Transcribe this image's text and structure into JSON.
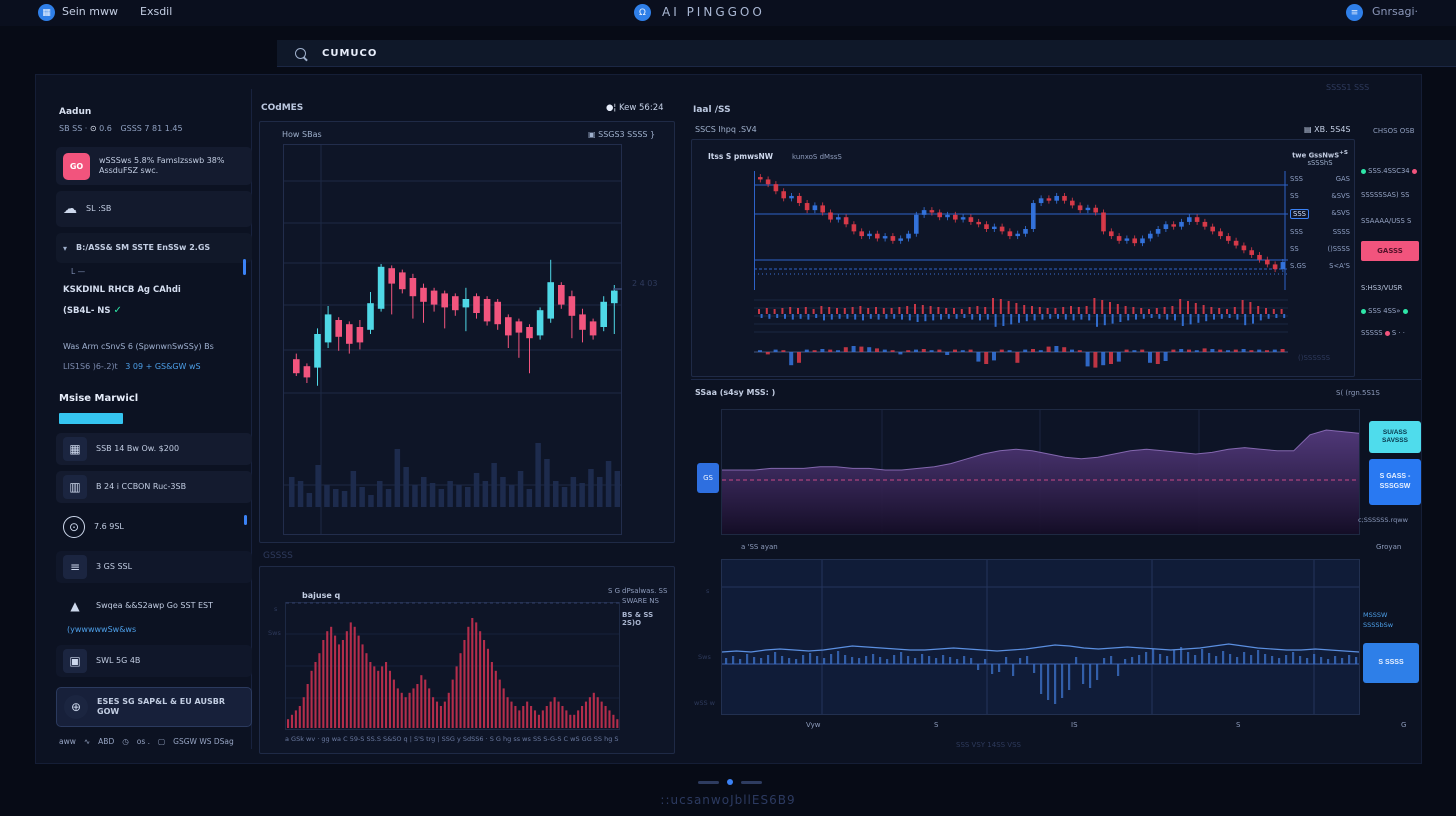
{
  "topbar": {
    "brand_a": "Sein mww",
    "brand_b": "Exsdil",
    "title": "AI PINGGOO",
    "user": "Gnrsagi·"
  },
  "search": {
    "query": "CUMUCO"
  },
  "panel": {
    "faint_right": "SSSS1 SSS"
  },
  "sidebar": {
    "section_label": "Aadun",
    "stats_p1": "SB SS ·",
    "stats_p2": "0.6",
    "stats_p3": "GSSS 7 81 1.45",
    "go_icon": "GO",
    "go_text": "wSSSws 5.8% FamsIzsswb 38% AssduFSZ swc.",
    "cloud_text": "SL :SB",
    "caret_text": "B:/ASS& SM SSTE EnSSw 2.GS",
    "caret_sub": "L —",
    "para1": "KSKDINL RHCB Ag CAhdi",
    "para2": "(SB4L-  NS",
    "para3": "Was Arm cSnvS 6 (SpwnwnSwSSy) Bs",
    "link_pre": "LIS1S6  )6-.2)t",
    "link_text": "3 09 + GS&GW wS",
    "section2_label": "Msise Marwicl",
    "items": [
      {
        "label": "SSB 14 Bw Ow. $200"
      },
      {
        "label": "B 24 i CCBON Ruc-3SB"
      },
      {
        "label": "7.6 9SL"
      },
      {
        "label": "3 GS SSL"
      },
      {
        "label": "Swqea &&S2awp Go SST EST",
        "sub": "(ywwwwwSw&ws"
      },
      {
        "label": "SWL 5G 4B"
      },
      {
        "label": "ESES SG SAP&L & EU AUSBR GOW"
      }
    ],
    "footer": {
      "p1": "aww",
      "p2": "ABD",
      "p3": "os .",
      "p4": "GSGW WS DSag"
    }
  },
  "center": {
    "title": "COdMES",
    "title_right": "Kew 56:24",
    "card1_left": "How SBas",
    "card1_right": "SSGS3 SSSS }",
    "price_label": "2 4 03",
    "between_faint": "GSSSS",
    "card2_left": "bajuse q",
    "card2_icons": "S G",
    "card2_r1": "dPsalwas. SS",
    "card2_r2": "SWARE NS",
    "card2_r3": "BS & SS 2S)O",
    "osc_axis_l1": "s",
    "osc_axis_l2": "Sws",
    "axis_row": "a GSk wv · gg wa C 59-S  SS.S S&SO q  |  S'S trg  |  SSG y SdSS6 · S G hg  ss ws  SS S-G-S C  wS GG  SS hg S"
  },
  "right": {
    "title": "Iaal /SS",
    "sub_left": "SSCS Ihpq .SV4",
    "sub_right": "XB. 5S4S",
    "sub_far_right": "CHSOS OSB",
    "chart_hdr_bold": "Itss S pmwsNW",
    "chart_hdr2": "kunxoS dMssS",
    "axis_head1": "twe GssNwS",
    "axis_head_sup": "+S",
    "axis_head2": "sSSShS",
    "axis_rows": [
      {
        "l": "SSS",
        "r": "GAS"
      },
      {
        "l": "SS",
        "r": "&SVS"
      },
      {
        "l": "SSS",
        "r": "&SVS"
      },
      {
        "l": "SSS",
        "r": "SSSS"
      },
      {
        "l": "SS",
        "r": "()SSSS"
      },
      {
        "l": "S.GS",
        "r": "S<A'S"
      }
    ],
    "watermark": "()SSSSSS",
    "legend": [
      {
        "text": "SSS.4SSC34"
      },
      {
        "text": "SSSSSSAS) SS"
      },
      {
        "text": "SSAAAA/USS S"
      },
      {
        "badge": "GASSS"
      },
      {
        "text": "S:HS3/VUSR"
      },
      {
        "text": "SSS 4SS»"
      },
      {
        "text": "SSSSS",
        "tail": "S · ·"
      }
    ],
    "area_hdr_left": "SSaa (s4sy MSS: )",
    "area_hdr_right": "S( (rgn.5S1S",
    "area_badge": "GS",
    "btn_cyan": "SU/ASS SAVSSS",
    "btn_blue": "S GASS -SSSGSW",
    "under_buttons": "c;SSSSSS.rqww",
    "row_left": "a 'SS ayan",
    "row_right": "Groyan",
    "bottom_axis_l1": "s",
    "bottom_axis_l2": "Sws",
    "bottom_left_faint": "wSS w",
    "x_ticks": [
      "Vyw",
      "S",
      "IS",
      "S",
      "G"
    ],
    "below_center": "SSS VSY 14SS VSS",
    "side_text1": "MSSSW",
    "side_text2": "SSSSbSw",
    "side_button": "S SSSS"
  },
  "footer": {
    "text": "::ucsanwoJbllES6B9"
  },
  "colors": {
    "accent_cyan": "#35c5f0",
    "accent_blue": "#2979f2",
    "candle_up": "#4fd8e6",
    "candle_down": "#f2557e",
    "rc_red": "#dd3b4a",
    "rc_blue": "#3575e0",
    "purple": "#5b3e86",
    "pink": "#f2547d"
  },
  "charts": {
    "center_candles": {
      "type": "candlestick",
      "candles": [
        [
          78,
          88,
          74,
          90,
          "d"
        ],
        [
          83,
          91,
          81,
          95,
          "d"
        ],
        [
          60,
          84,
          56,
          97,
          "u"
        ],
        [
          46,
          66,
          40,
          70,
          "u"
        ],
        [
          50,
          62,
          48,
          72,
          "d"
        ],
        [
          53,
          67,
          51,
          74,
          "d"
        ],
        [
          55,
          66,
          50,
          71,
          "d"
        ],
        [
          38,
          57,
          30,
          60,
          "u"
        ],
        [
          12,
          42,
          10,
          44,
          "u"
        ],
        [
          13,
          24,
          11,
          46,
          "d"
        ],
        [
          16,
          28,
          14,
          31,
          "d"
        ],
        [
          20,
          33,
          17,
          49,
          "d"
        ],
        [
          27,
          37,
          24,
          52,
          "d"
        ],
        [
          29,
          39,
          27,
          44,
          "d"
        ],
        [
          31,
          41,
          29,
          56,
          "d"
        ],
        [
          33,
          43,
          31,
          47,
          "d"
        ],
        [
          35,
          41,
          27,
          58,
          "u"
        ],
        [
          33,
          45,
          31,
          49,
          "d"
        ],
        [
          35,
          51,
          33,
          54,
          "d"
        ],
        [
          37,
          53,
          35,
          57,
          "d"
        ],
        [
          48,
          61,
          46,
          70,
          "d"
        ],
        [
          51,
          59,
          49,
          77,
          "d"
        ],
        [
          55,
          63,
          53,
          88,
          "d"
        ],
        [
          43,
          61,
          41,
          64,
          "u"
        ],
        [
          23,
          49,
          7,
          52,
          "u"
        ],
        [
          25,
          39,
          23,
          42,
          "d"
        ],
        [
          33,
          47,
          29,
          63,
          "d"
        ],
        [
          46,
          57,
          42,
          66,
          "d"
        ],
        [
          51,
          61,
          49,
          64,
          "d"
        ],
        [
          37,
          55,
          33,
          58,
          "u"
        ],
        [
          29,
          38,
          25,
          60,
          "u"
        ]
      ]
    },
    "center_volume": {
      "type": "bar",
      "values": [
        30,
        26,
        14,
        42,
        22,
        18,
        16,
        36,
        20,
        12,
        26,
        18,
        58,
        40,
        22,
        30,
        24,
        18,
        26,
        22,
        20,
        34,
        26,
        44,
        30,
        22,
        36,
        18,
        64,
        48,
        26,
        20,
        30,
        24,
        38,
        30,
        46,
        36
      ]
    },
    "center_osc": {
      "type": "bar",
      "values": [
        4,
        6,
        8,
        10,
        14,
        20,
        26,
        30,
        34,
        40,
        44,
        46,
        42,
        38,
        40,
        44,
        48,
        46,
        42,
        38,
        34,
        30,
        28,
        26,
        28,
        30,
        26,
        22,
        18,
        16,
        14,
        16,
        18,
        20,
        24,
        22,
        18,
        14,
        12,
        10,
        12,
        16,
        22,
        28,
        34,
        40,
        46,
        50,
        48,
        44,
        40,
        36,
        30,
        26,
        22,
        18,
        14,
        12,
        10,
        8,
        10,
        12,
        10,
        8,
        6,
        8,
        10,
        12,
        14,
        12,
        10,
        8,
        6,
        6,
        8,
        10,
        12,
        14,
        16,
        14,
        12,
        10,
        8,
        6,
        4
      ]
    },
    "right_candles": {
      "type": "candlestick",
      "closes": [
        8,
        12,
        18,
        24,
        22,
        28,
        34,
        30,
        36,
        42,
        40,
        46,
        52,
        56,
        54,
        58,
        56,
        60,
        58,
        54,
        38,
        34,
        36,
        40,
        38,
        42,
        40,
        44,
        46,
        50,
        48,
        52,
        56,
        54,
        50,
        28,
        24,
        26,
        22,
        26,
        30,
        34,
        32,
        36,
        52,
        56,
        60,
        58,
        62,
        58,
        54,
        50,
        46,
        48,
        44,
        40,
        44,
        48,
        52,
        56,
        60,
        64,
        68,
        72,
        76,
        80,
        84,
        78
      ]
    },
    "right_macd": {
      "type": "bar",
      "values": [
        5,
        6,
        5,
        6,
        7,
        6,
        7,
        5,
        8,
        7,
        6,
        6,
        7,
        8,
        6,
        7,
        6,
        6,
        7,
        8,
        10,
        9,
        8,
        7,
        6,
        6,
        5,
        7,
        8,
        7,
        16,
        15,
        13,
        11,
        9,
        8,
        7,
        6,
        6,
        7,
        8,
        7,
        8,
        16,
        14,
        12,
        10,
        8,
        7,
        6,
        5,
        6,
        7,
        8,
        15,
        13,
        11,
        9,
        7,
        6,
        5,
        7,
        14,
        12,
        8,
        6,
        5,
        5
      ]
    },
    "right_flow": {
      "type": "bar",
      "values": [
        3,
        -4,
        4,
        3,
        -22,
        -18,
        4,
        3,
        5,
        4,
        3,
        8,
        10,
        9,
        8,
        6,
        4,
        3,
        -4,
        3,
        4,
        5,
        3,
        4,
        -5,
        4,
        3,
        4,
        -16,
        -20,
        -14,
        4,
        3,
        -18,
        4,
        5,
        3,
        9,
        10,
        8,
        4,
        3,
        -24,
        -26,
        -22,
        -20,
        -16,
        4,
        3,
        4,
        -18,
        -20,
        -15,
        4,
        5,
        4,
        3,
        6,
        5,
        4,
        3,
        4,
        5,
        3,
        4,
        3,
        4,
        5
      ]
    },
    "purple_area": {
      "type": "area",
      "values": [
        40,
        40,
        40,
        41,
        41,
        41,
        42,
        42,
        41,
        41,
        40,
        40,
        41,
        42,
        44,
        47,
        50,
        52,
        53,
        52,
        50,
        48,
        47,
        48,
        50,
        52,
        53,
        52,
        51,
        50,
        51,
        53,
        54,
        53,
        52,
        52,
        62,
        65,
        64,
        63
      ]
    },
    "bottom_bars": {
      "type": "bar",
      "values": [
        6,
        8,
        5,
        10,
        7,
        6,
        9,
        12,
        8,
        6,
        5,
        9,
        11,
        8,
        6,
        10,
        13,
        9,
        7,
        6,
        8,
        10,
        7,
        5,
        9,
        12,
        8,
        6,
        10,
        8,
        6,
        9,
        7,
        5,
        8,
        6,
        -6,
        5,
        -10,
        -8,
        7,
        -12,
        6,
        8,
        -9,
        -30,
        -36,
        -40,
        -34,
        -26,
        7,
        -20,
        -24,
        -16,
        6,
        8,
        -12,
        5,
        7,
        9,
        12,
        15,
        10,
        8,
        14,
        17,
        12,
        9,
        15,
        11,
        8,
        13,
        10,
        7,
        12,
        9,
        14,
        10,
        8,
        6,
        9,
        12,
        8,
        6,
        10,
        7,
        5,
        8,
        6,
        9,
        7
      ]
    },
    "bottom_line": {
      "type": "line",
      "values": [
        12,
        13,
        12,
        14,
        15,
        14,
        13,
        14,
        16,
        18,
        17,
        16,
        15,
        14,
        14,
        15,
        16,
        15,
        14,
        13,
        14,
        15,
        17,
        19,
        18,
        16,
        15,
        16,
        17,
        16,
        15,
        14,
        15,
        16,
        18,
        20,
        18,
        16,
        15,
        14,
        14,
        15,
        14,
        13,
        12
      ]
    }
  }
}
